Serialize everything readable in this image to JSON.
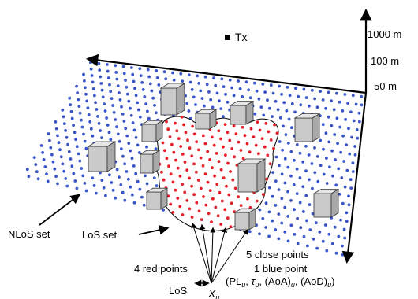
{
  "transmitter": {
    "label": "Tx"
  },
  "altitudes": {
    "top": "1000 m",
    "middle": "100 m",
    "bottom": "50 m"
  },
  "sets": {
    "nlos": "NLoS set",
    "los": "LoS set"
  },
  "annotations": {
    "close_points": "5 close points",
    "red_points": "4 red points",
    "blue_point": "1 blue point",
    "los_label": "LoS",
    "target": "X",
    "target_sub": "u",
    "features": {
      "pl": "PL",
      "tau": "τ",
      "aoa": "(AoA)",
      "aod": "(AoD)",
      "sub": "u"
    }
  },
  "colors": {
    "los_point": "#e8202a",
    "nlos_point": "#3a55c8",
    "building": "#c9c9c9"
  }
}
